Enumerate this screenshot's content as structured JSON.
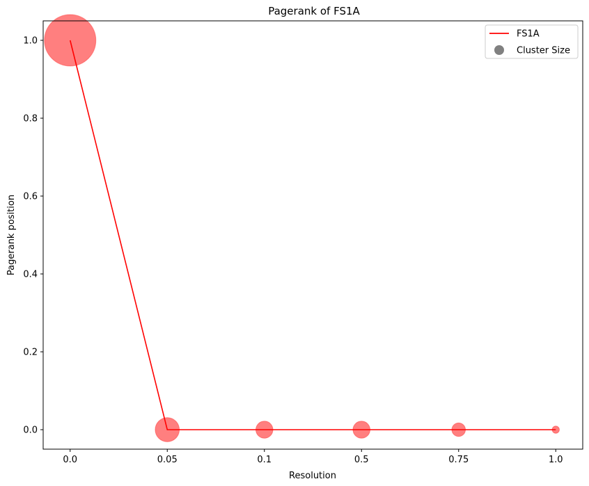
{
  "chart_data": {
    "type": "line",
    "title": "Pagerank of FS1A",
    "xlabel": "Resolution",
    "ylabel": "Pagerank position",
    "categories": [
      "0.0",
      "0.05",
      "0.1",
      "0.5",
      "0.75",
      "1.0"
    ],
    "series": [
      {
        "name": "FS1A",
        "color": "#ff0000",
        "values": [
          1.0,
          0.0,
          0.0,
          0.0,
          0.0,
          0.0
        ]
      }
    ],
    "bubble_sizes": [
      100,
      22,
      11,
      11,
      7,
      2
    ],
    "bubble_color": "#ff0000",
    "bubble_opacity": 0.5,
    "ylim": [
      -0.05,
      1.05
    ],
    "yticks": [
      0.0,
      0.2,
      0.4,
      0.6,
      0.8,
      1.0
    ],
    "ytick_labels": [
      "0.0",
      "0.2",
      "0.4",
      "0.6",
      "0.8",
      "1.0"
    ],
    "grid": false,
    "legend": {
      "placement": "top-right",
      "entries": [
        {
          "label": "FS1A",
          "kind": "line",
          "color": "#ff0000"
        },
        {
          "label": "Cluster Size",
          "kind": "marker",
          "color": "#808080"
        }
      ]
    }
  }
}
